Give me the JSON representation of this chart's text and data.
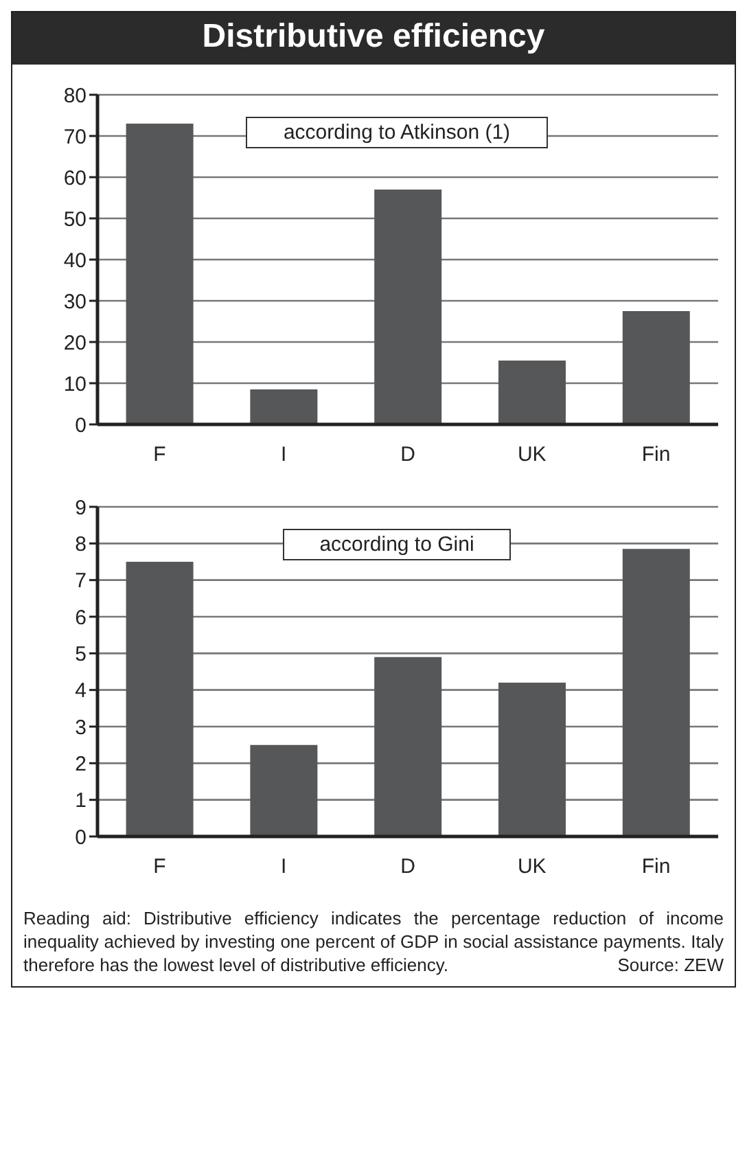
{
  "chart_data": [
    {
      "type": "bar",
      "title": "Distributive efficiency",
      "categories": [
        "F",
        "I",
        "D",
        "UK",
        "Fin"
      ],
      "values": [
        73,
        8.5,
        57,
        15.5,
        27.5
      ],
      "color": "#565759",
      "ylim": [
        0,
        80
      ],
      "yticks": [
        0,
        10,
        20,
        30,
        40,
        50,
        60,
        70,
        80
      ],
      "grid": "y",
      "legend": false,
      "annotations": [
        "according to Atkinson (1)"
      ]
    },
    {
      "type": "bar",
      "categories": [
        "F",
        "I",
        "D",
        "UK",
        "Fin"
      ],
      "values": [
        7.5,
        2.5,
        4.9,
        4.2,
        7.85
      ],
      "color": "#565759",
      "ylim": [
        0,
        9
      ],
      "yticks": [
        0,
        1,
        2,
        3,
        4,
        5,
        6,
        7,
        8,
        9
      ],
      "grid": "y",
      "legend": false,
      "annotations": [
        "according to Gini",
        "Reading aid: Distributive efficiency indicates the percentage reduction of income inequality achieved by investing one percent of GDP in social assistance payments. Italy therefore has the lowest level of distributive efficiency.",
        "Source: ZEW"
      ]
    }
  ]
}
